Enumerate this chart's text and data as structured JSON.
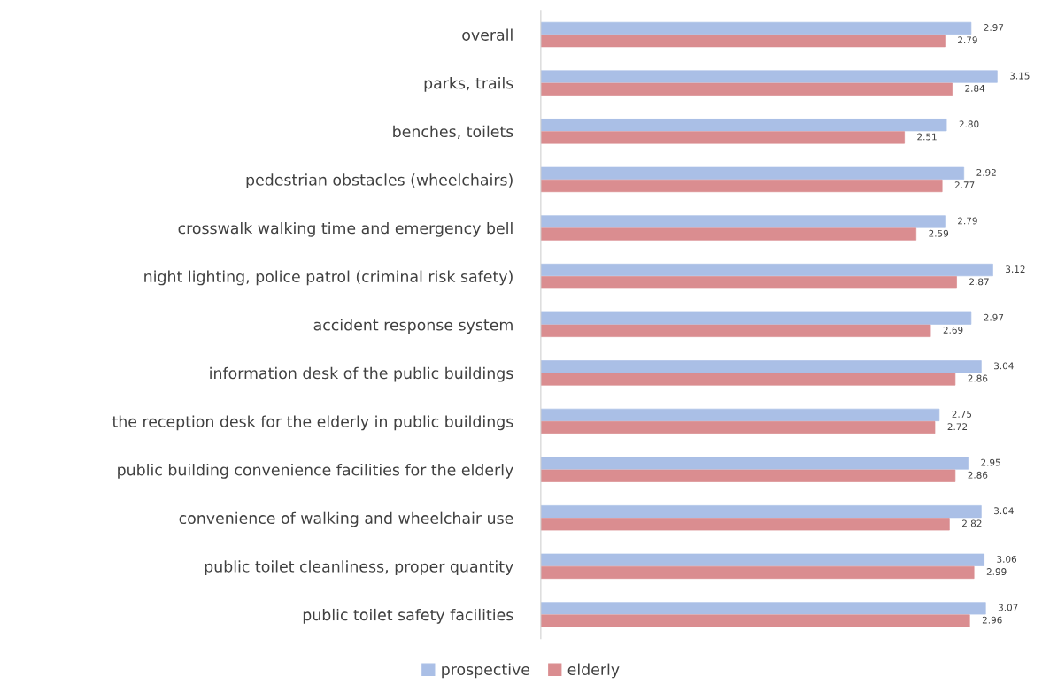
{
  "chart_data": {
    "type": "bar",
    "orientation": "horizontal",
    "categories": [
      "overall",
      "parks, trails",
      "benches, toilets",
      "pedestrian obstacles (wheelchairs)",
      "crosswalk walking time and emergency bell",
      "night lighting, police patrol (criminal risk safety)",
      "accident response system",
      "information desk of the public buildings",
      "the reception desk for the elderly in public buildings",
      "public building convenience facilities for the elderly",
      "convenience of walking and wheelchair use",
      "public toilet cleanliness, proper quantity",
      "public toilet safety facilities"
    ],
    "series": [
      {
        "name": "prospective",
        "color": "#aabfe6",
        "values": [
          2.97,
          3.15,
          2.8,
          2.92,
          2.79,
          3.12,
          2.97,
          3.04,
          2.75,
          2.95,
          3.04,
          3.06,
          3.07
        ],
        "value_labels": [
          "2.97",
          "3.15",
          "2.80",
          "2.92",
          "2.79",
          "3.12",
          "2.97",
          "3.04",
          "2.75",
          "2.95",
          "3.04",
          "3.06",
          "3.07"
        ]
      },
      {
        "name": "elderly",
        "color": "#da8d90",
        "values": [
          2.79,
          2.84,
          2.51,
          2.77,
          2.59,
          2.87,
          2.69,
          2.86,
          2.72,
          2.86,
          2.82,
          2.99,
          2.96
        ],
        "value_labels": [
          "2.79",
          "2.84",
          "2.51",
          "2.77",
          "2.59",
          "2.87",
          "2.69",
          "2.86",
          "2.72",
          "2.86",
          "2.82",
          "2.99",
          "2.96"
        ]
      }
    ],
    "tick_labels": "y",
    "grid": false,
    "legend": "bottom"
  }
}
